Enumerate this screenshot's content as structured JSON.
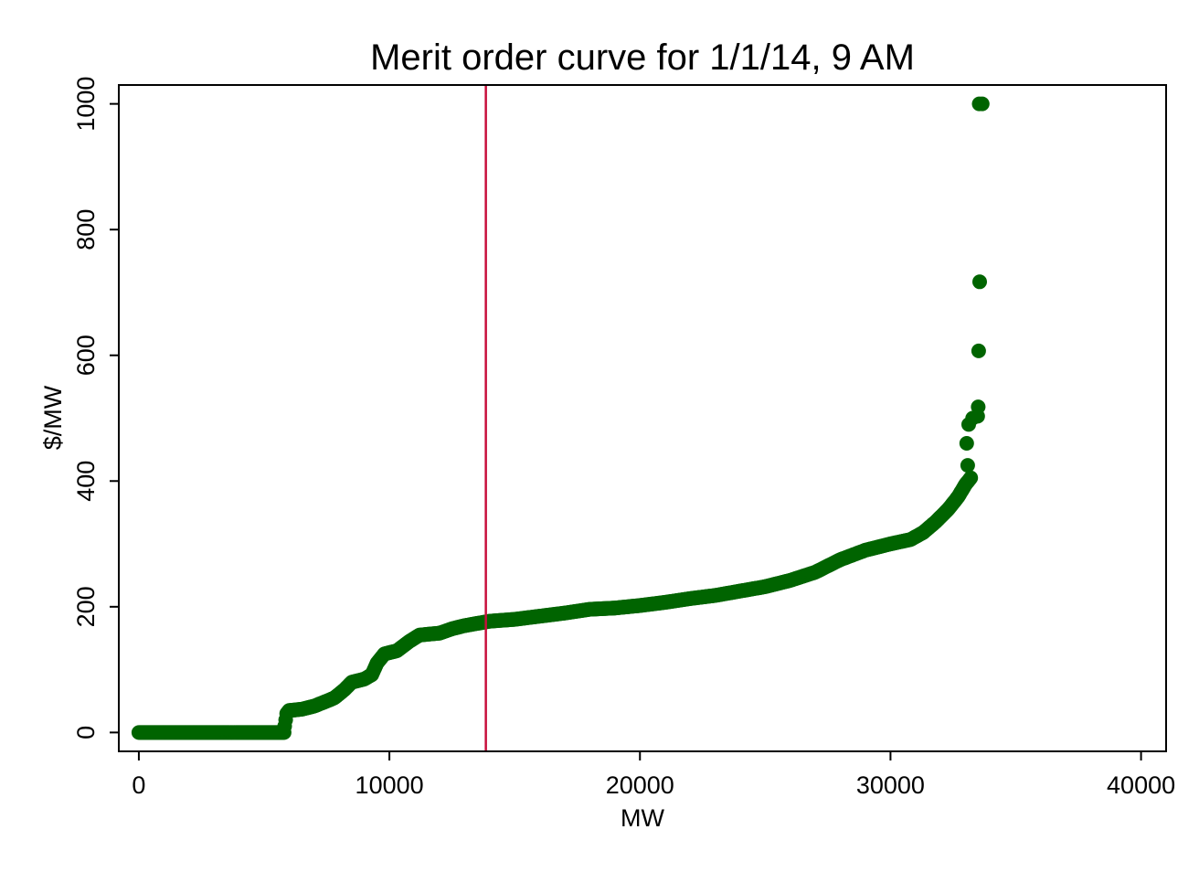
{
  "chart_data": {
    "type": "scatter",
    "title": "Merit order curve for 1/1/14, 9 AM",
    "xlabel": "MW",
    "ylabel": "$/MW",
    "xlim": [
      -800,
      41000
    ],
    "ylim": [
      -30,
      1030
    ],
    "xticks": [
      {
        "value": 0,
        "label": "0"
      },
      {
        "value": 10000,
        "label": "10000"
      },
      {
        "value": 20000,
        "label": "20000"
      },
      {
        "value": 30000,
        "label": "30000"
      },
      {
        "value": 40000,
        "label": "40000"
      }
    ],
    "yticks": [
      {
        "value": 0,
        "label": "0"
      },
      {
        "value": 200,
        "label": "200"
      },
      {
        "value": 400,
        "label": "400"
      },
      {
        "value": 600,
        "label": "600"
      },
      {
        "value": 800,
        "label": "800"
      },
      {
        "value": 1000,
        "label": "1000"
      }
    ],
    "grid": false,
    "legend": "none",
    "marker_color": "#006400",
    "vline": {
      "x": 13850,
      "color": "#c8103c"
    },
    "curve": [
      [
        0,
        0
      ],
      [
        5800,
        0
      ],
      [
        5820,
        10
      ],
      [
        5900,
        30
      ],
      [
        6000,
        35
      ],
      [
        6500,
        37
      ],
      [
        7000,
        42
      ],
      [
        7500,
        50
      ],
      [
        7800,
        55
      ],
      [
        8200,
        68
      ],
      [
        8500,
        80
      ],
      [
        9000,
        85
      ],
      [
        9300,
        92
      ],
      [
        9500,
        110
      ],
      [
        9800,
        125
      ],
      [
        10300,
        130
      ],
      [
        10800,
        145
      ],
      [
        11200,
        155
      ],
      [
        12000,
        158
      ],
      [
        12500,
        165
      ],
      [
        13000,
        170
      ],
      [
        14000,
        177
      ],
      [
        15000,
        180
      ],
      [
        16000,
        185
      ],
      [
        17000,
        190
      ],
      [
        18000,
        196
      ],
      [
        19000,
        198
      ],
      [
        20000,
        202
      ],
      [
        21000,
        207
      ],
      [
        22000,
        213
      ],
      [
        23000,
        218
      ],
      [
        24000,
        225
      ],
      [
        25000,
        232
      ],
      [
        26000,
        242
      ],
      [
        27000,
        255
      ],
      [
        28000,
        275
      ],
      [
        29000,
        290
      ],
      [
        30000,
        300
      ],
      [
        30800,
        307
      ],
      [
        31300,
        318
      ],
      [
        31800,
        335
      ],
      [
        32300,
        355
      ],
      [
        32700,
        375
      ],
      [
        33000,
        395
      ],
      [
        33200,
        405
      ]
    ],
    "outliers": [
      [
        33080,
        425
      ],
      [
        33040,
        460
      ],
      [
        33120,
        490
      ],
      [
        33280,
        500
      ],
      [
        33480,
        503
      ],
      [
        33500,
        518
      ],
      [
        33520,
        607
      ],
      [
        33560,
        717
      ],
      [
        33540,
        1000
      ],
      [
        33660,
        1000
      ]
    ]
  }
}
